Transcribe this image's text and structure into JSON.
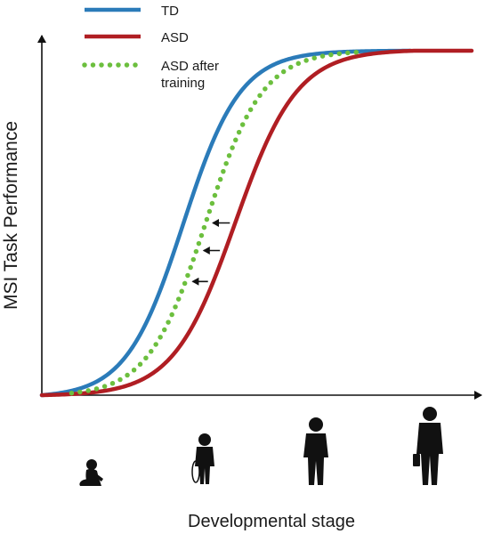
{
  "chart_data": {
    "type": "line",
    "title": "",
    "xlabel": "Developmental stage",
    "ylabel": "MSI Task Performance",
    "xlim": [
      0,
      1
    ],
    "ylim": [
      0,
      1
    ],
    "grid": false,
    "legend_position": "top-left",
    "series": [
      {
        "name": "TD",
        "color": "#2b7bb9",
        "style": "solid",
        "midpoint": 0.38,
        "steepness": 13
      },
      {
        "name": "ASD",
        "color": "#b01e23",
        "style": "solid",
        "midpoint": 0.52,
        "steepness": 12
      },
      {
        "name_lines": [
          "ASD after",
          "training"
        ],
        "color": "#6cbf3e",
        "style": "dotted",
        "midpoint": 0.44,
        "steepness": 13
      }
    ],
    "annotations": [
      {
        "type": "arrow",
        "points_from": "ASD",
        "points_to": "ASD after training",
        "y": 0.5
      },
      {
        "type": "arrow",
        "points_from": "ASD",
        "points_to": "ASD after training",
        "y": 0.42
      },
      {
        "type": "arrow",
        "points_from": "ASD",
        "points_to": "ASD after training",
        "y": 0.33
      }
    ],
    "x_stage_icons": [
      "infant-icon",
      "child-icon",
      "teen-icon",
      "adult-icon"
    ]
  }
}
